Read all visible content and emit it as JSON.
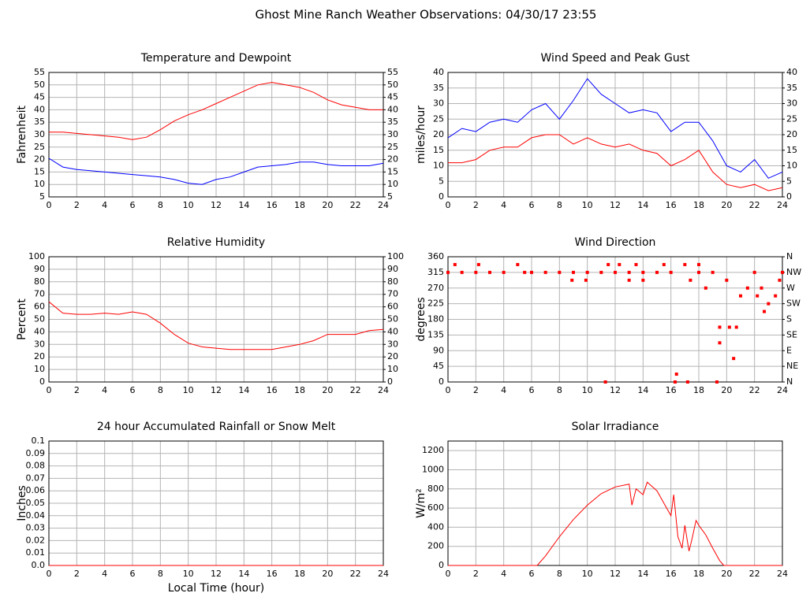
{
  "title": "Ghost Mine Ranch Weather Observations: 04/30/17 23:55",
  "chart_data": [
    {
      "type": "line",
      "title": "Temperature and Dewpoint",
      "ylabel": "Fahrenheit",
      "x": [
        0,
        1,
        2,
        3,
        4,
        5,
        6,
        7,
        8,
        9,
        10,
        11,
        12,
        13,
        14,
        15,
        16,
        17,
        18,
        19,
        20,
        21,
        22,
        23,
        24
      ],
      "series": [
        {
          "color": "#ff0000",
          "values": [
            31,
            31,
            30.5,
            30,
            29.5,
            29,
            28,
            29,
            32,
            35.5,
            38,
            40,
            42.5,
            45,
            47.5,
            50,
            51,
            50,
            49,
            47,
            44,
            42,
            41,
            40,
            40
          ]
        },
        {
          "color": "#0000ff",
          "values": [
            20.5,
            17,
            16,
            15.5,
            15,
            14.5,
            14,
            13.5,
            13,
            12,
            10.5,
            10,
            12,
            13,
            15,
            17,
            17.5,
            18,
            19,
            19,
            18,
            17.5,
            17.5,
            17.5,
            18.5
          ]
        }
      ],
      "xlim": [
        0,
        24
      ],
      "xticks": [
        0,
        2,
        4,
        6,
        8,
        10,
        12,
        14,
        16,
        18,
        20,
        22,
        24
      ],
      "ylim": [
        5,
        55
      ],
      "yticks": [
        5,
        10,
        15,
        20,
        25,
        30,
        35,
        40,
        45,
        50,
        55
      ],
      "y2lim": [
        5,
        55
      ],
      "y2ticks": [
        5,
        10,
        15,
        20,
        25,
        30,
        35,
        40,
        45,
        50,
        55
      ],
      "grid": true
    },
    {
      "type": "line",
      "title": "Wind Speed and Peak Gust",
      "ylabel": "miles/hour",
      "x": [
        0,
        1,
        2,
        3,
        4,
        5,
        6,
        7,
        8,
        9,
        10,
        11,
        12,
        13,
        14,
        15,
        16,
        17,
        18,
        19,
        20,
        21,
        22,
        23,
        24
      ],
      "series": [
        {
          "color": "#0000ff",
          "values": [
            19,
            22,
            21,
            24,
            25,
            24,
            28,
            30,
            25,
            31,
            38,
            33,
            30,
            27,
            28,
            27,
            21,
            24,
            24,
            18,
            10,
            8,
            12,
            6,
            8
          ]
        },
        {
          "color": "#ff0000",
          "values": [
            11,
            11,
            12,
            15,
            16,
            16,
            19,
            20,
            20,
            17,
            19,
            17,
            16,
            17,
            15,
            14,
            10,
            12,
            15,
            8,
            4,
            3,
            4,
            2,
            3
          ]
        }
      ],
      "xlim": [
        0,
        24
      ],
      "xticks": [
        0,
        2,
        4,
        6,
        8,
        10,
        12,
        14,
        16,
        18,
        20,
        22,
        24
      ],
      "ylim": [
        0,
        40
      ],
      "yticks": [
        0,
        5,
        10,
        15,
        20,
        25,
        30,
        35,
        40
      ],
      "y2lim": [
        0,
        40
      ],
      "y2ticks": [
        0,
        5,
        10,
        15,
        20,
        25,
        30,
        35,
        40
      ],
      "grid": true
    },
    {
      "type": "line",
      "title": "Relative Humidity",
      "ylabel": "Percent",
      "x": [
        0,
        1,
        2,
        3,
        4,
        5,
        6,
        7,
        8,
        9,
        10,
        11,
        12,
        13,
        14,
        15,
        16,
        17,
        18,
        19,
        20,
        21,
        22,
        23,
        24
      ],
      "series": [
        {
          "color": "#ff0000",
          "values": [
            64,
            55,
            54,
            54,
            55,
            54,
            56,
            54,
            47,
            38,
            31,
            28,
            27,
            26,
            26,
            26,
            26,
            28,
            30,
            33,
            38,
            38,
            38,
            41,
            42
          ]
        }
      ],
      "xlim": [
        0,
        24
      ],
      "xticks": [
        0,
        2,
        4,
        6,
        8,
        10,
        12,
        14,
        16,
        18,
        20,
        22,
        24
      ],
      "ylim": [
        0,
        100
      ],
      "yticks": [
        0,
        10,
        20,
        30,
        40,
        50,
        60,
        70,
        80,
        90,
        100
      ],
      "y2lim": [
        0,
        100
      ],
      "y2ticks": [
        0,
        10,
        20,
        30,
        40,
        50,
        60,
        70,
        80,
        90,
        100
      ],
      "grid": true
    },
    {
      "type": "scatter",
      "title": "Wind Direction",
      "ylabel": "degrees",
      "x": [
        0,
        0.5,
        1,
        2,
        2.2,
        3,
        4,
        5,
        5.5,
        6,
        7,
        8,
        8.9,
        9,
        9.9,
        10,
        11,
        11.3,
        11.5,
        12,
        12.3,
        13,
        13,
        13.5,
        14,
        14,
        15,
        15.5,
        16,
        16.3,
        16.4,
        17,
        17.2,
        17.4,
        18,
        18,
        18.5,
        19,
        19.3,
        19.5,
        19.5,
        20,
        20.2,
        20.5,
        20.7,
        21,
        21.5,
        22,
        22.2,
        22.5,
        22.7,
        23,
        23.5,
        23.8,
        24
      ],
      "series": [
        {
          "color": "#ff0000",
          "values": [
            315,
            337.5,
            315,
            315,
            337.5,
            315,
            315,
            337.5,
            315,
            315,
            315,
            315,
            292.5,
            315,
            292.5,
            315,
            315,
            0,
            337.5,
            315,
            337.5,
            315,
            292.5,
            337.5,
            292.5,
            315,
            315,
            337.5,
            315,
            0,
            22.5,
            337.5,
            0,
            292.5,
            315,
            337.5,
            270,
            315,
            0,
            157.5,
            112.5,
            292.5,
            157.5,
            67.5,
            157.5,
            247.5,
            270,
            315,
            247.5,
            270,
            202.5,
            225,
            247.5,
            292.5,
            315
          ]
        }
      ],
      "xlim": [
        0,
        24
      ],
      "xticks": [
        0,
        2,
        4,
        6,
        8,
        10,
        12,
        14,
        16,
        18,
        20,
        22,
        24
      ],
      "ylim": [
        0,
        360
      ],
      "yticks": [
        0,
        45,
        90,
        135,
        180,
        225,
        270,
        315,
        360
      ],
      "y2lim": [
        0,
        360
      ],
      "y2ticks": [
        {
          "value": 0,
          "label": "N"
        },
        {
          "value": 45,
          "label": "NE"
        },
        {
          "value": 90,
          "label": "E"
        },
        {
          "value": 135,
          "label": "SE"
        },
        {
          "value": 180,
          "label": "S"
        },
        {
          "value": 225,
          "label": "SW"
        },
        {
          "value": 270,
          "label": "W"
        },
        {
          "value": 315,
          "label": "NW"
        },
        {
          "value": 360,
          "label": "N"
        }
      ],
      "grid": true
    },
    {
      "type": "line",
      "title": "24 hour Accumulated Rainfall or Snow Melt",
      "ylabel": "Inches",
      "xlabel": "Local Time (hour)",
      "x": [
        0,
        24
      ],
      "series": [
        {
          "color": "#ff0000",
          "values": [
            0,
            0
          ]
        }
      ],
      "xlim": [
        0,
        24
      ],
      "xticks": [
        0,
        2,
        4,
        6,
        8,
        10,
        12,
        14,
        16,
        18,
        20,
        22,
        24
      ],
      "ylim": [
        0,
        0.1
      ],
      "yticks": [
        {
          "value": 0,
          "label": "0.0"
        },
        0.01,
        0.02,
        0.03,
        0.04,
        0.05,
        0.06,
        0.07,
        0.08,
        0.09,
        0.1
      ],
      "grid": true
    },
    {
      "type": "line",
      "title": "Solar Irradiance",
      "ylabel": "W/m²",
      "x": [
        0,
        6.4,
        7,
        8,
        9,
        10,
        11,
        12,
        13,
        13.2,
        13.5,
        14,
        14.3,
        15,
        15.5,
        16,
        16.2,
        16.5,
        16.8,
        17,
        17.3,
        17.5,
        17.8,
        18,
        18.5,
        19,
        19.5,
        19.8,
        24
      ],
      "series": [
        {
          "color": "#ff0000",
          "values": [
            0,
            0,
            100,
            300,
            480,
            630,
            750,
            820,
            850,
            630,
            800,
            740,
            870,
            780,
            650,
            520,
            740,
            300,
            180,
            420,
            150,
            270,
            470,
            420,
            320,
            180,
            50,
            0,
            0
          ]
        }
      ],
      "xlim": [
        0,
        24
      ],
      "xticks": [
        0,
        2,
        4,
        6,
        8,
        10,
        12,
        14,
        16,
        18,
        20,
        22,
        24
      ],
      "ylim": [
        0,
        1300
      ],
      "yticks": [
        0,
        200,
        400,
        600,
        800,
        1000,
        1200
      ],
      "grid": true
    }
  ]
}
